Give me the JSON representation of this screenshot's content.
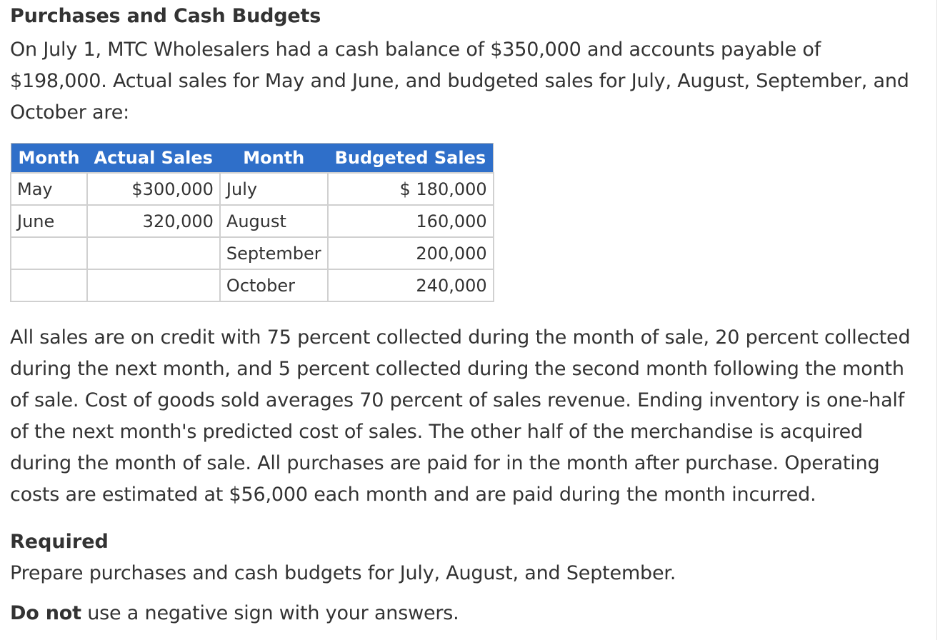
{
  "title": "Purchases and Cash Budgets",
  "intro": "On July 1, MTC Wholesalers had a cash balance of $350,000 and accounts payable of $198,000. Actual sales for May and June, and budgeted sales for July, August, September, and October are:",
  "table": {
    "headers": [
      "Month",
      "Actual Sales",
      "Month",
      "Budgeted Sales"
    ],
    "rows": [
      [
        "May",
        "$300,000",
        "July",
        "$ 180,000"
      ],
      [
        "June",
        "320,000",
        "August",
        "160,000"
      ],
      [
        "",
        "",
        "September",
        "200,000"
      ],
      [
        "",
        "",
        "October",
        "240,000"
      ]
    ]
  },
  "body": "All sales are on credit with 75 percent collected during the month of sale, 20 percent collected during the next month, and 5 percent collected during the second month following the month of sale. Cost of goods sold averages 70 percent of sales revenue. Ending inventory is one-half of the next month's predicted cost of sales. The other half of the merchandise is acquired during the month of sale. All purchases are paid for in the month after purchase. Operating costs are estimated at $56,000 each month and are paid during the month incurred.",
  "required_heading": "Required",
  "required_text": "Prepare purchases and cash budgets for July, August, and September.",
  "note_bold": "Do not",
  "note_text": " use a negative sign with your answers."
}
